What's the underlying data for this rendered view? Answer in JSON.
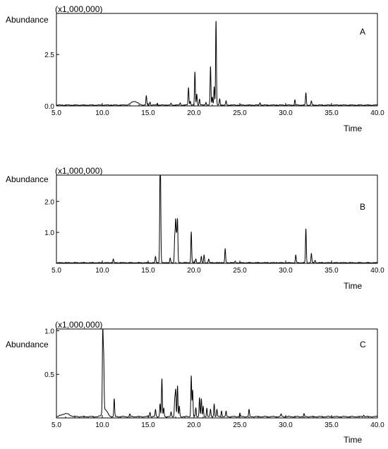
{
  "chart_data": [
    {
      "type": "line",
      "panel_label": "A",
      "scale_label": "(x1,000,000)",
      "ylabel": "Abundance",
      "xlabel": "Time",
      "xlim": [
        5.0,
        40.0
      ],
      "ylim": [
        0,
        4.5
      ],
      "x_ticks": [
        "5.0",
        "10.0",
        "15.0",
        "20.0",
        "25.0",
        "30.0",
        "35.0",
        "40.0"
      ],
      "y_ticks": [
        "0.0",
        "2.5"
      ],
      "y_tick_values": [
        0.0,
        2.5
      ],
      "baseline": 0.04,
      "peaks": [
        {
          "x": 13.5,
          "y": 0.18,
          "w": 0.35
        },
        {
          "x": 14.8,
          "y": 0.45
        },
        {
          "x": 15.2,
          "y": 0.15
        },
        {
          "x": 16.0,
          "y": 0.1
        },
        {
          "x": 17.5,
          "y": 0.08
        },
        {
          "x": 18.5,
          "y": 0.1
        },
        {
          "x": 19.4,
          "y": 0.85
        },
        {
          "x": 19.6,
          "y": 0.2
        },
        {
          "x": 20.1,
          "y": 1.6
        },
        {
          "x": 20.3,
          "y": 0.55
        },
        {
          "x": 20.6,
          "y": 0.3
        },
        {
          "x": 21.3,
          "y": 0.15
        },
        {
          "x": 21.8,
          "y": 1.85
        },
        {
          "x": 22.0,
          "y": 0.4
        },
        {
          "x": 22.2,
          "y": 0.9
        },
        {
          "x": 22.4,
          "y": 4.1
        },
        {
          "x": 22.8,
          "y": 0.3
        },
        {
          "x": 23.5,
          "y": 0.2
        },
        {
          "x": 27.2,
          "y": 0.12
        },
        {
          "x": 31.0,
          "y": 0.25
        },
        {
          "x": 32.2,
          "y": 0.6
        },
        {
          "x": 32.8,
          "y": 0.2
        }
      ]
    },
    {
      "type": "line",
      "panel_label": "B",
      "scale_label": "(x1,000,000)",
      "ylabel": "Abundance",
      "xlabel": "Time",
      "xlim": [
        5.0,
        40.0
      ],
      "ylim": [
        0,
        2.85
      ],
      "x_ticks": [
        "5.0",
        "10.0",
        "15.0",
        "20.0",
        "25.0",
        "30.0",
        "35.0",
        "40.0"
      ],
      "y_ticks": [
        "1.0",
        "2.0"
      ],
      "y_tick_values": [
        1.0,
        2.0
      ],
      "baseline": 0.02,
      "peaks": [
        {
          "x": 11.2,
          "y": 0.12
        },
        {
          "x": 15.8,
          "y": 0.2
        },
        {
          "x": 16.3,
          "y": 2.4
        },
        {
          "x": 16.35,
          "y": 1.8
        },
        {
          "x": 17.4,
          "y": 0.15
        },
        {
          "x": 17.9,
          "y": 0.8
        },
        {
          "x": 18.0,
          "y": 1.3
        },
        {
          "x": 18.1,
          "y": 0.75
        },
        {
          "x": 18.2,
          "y": 1.35
        },
        {
          "x": 19.7,
          "y": 1.0
        },
        {
          "x": 20.2,
          "y": 0.12
        },
        {
          "x": 20.8,
          "y": 0.2
        },
        {
          "x": 21.1,
          "y": 0.25
        },
        {
          "x": 21.6,
          "y": 0.12
        },
        {
          "x": 23.4,
          "y": 0.45
        },
        {
          "x": 24.5,
          "y": 0.05
        },
        {
          "x": 31.1,
          "y": 0.25
        },
        {
          "x": 32.2,
          "y": 1.1
        },
        {
          "x": 32.8,
          "y": 0.3
        },
        {
          "x": 33.2,
          "y": 0.08
        }
      ]
    },
    {
      "type": "line",
      "panel_label": "C",
      "scale_label": "(x1,000,000)",
      "ylabel": "Abundance",
      "xlabel": "Time",
      "xlim": [
        5.0,
        40.0
      ],
      "ylim": [
        0,
        1.02
      ],
      "x_ticks": [
        "5.0",
        "10.0",
        "15.0",
        "20.0",
        "25.0",
        "30.0",
        "35.0",
        "40.0"
      ],
      "y_ticks": [
        "0.5",
        "1.0"
      ],
      "y_tick_values": [
        0.5,
        1.0
      ],
      "baseline": 0.015,
      "peaks": [
        {
          "x": 6.0,
          "y": 0.035,
          "w": 0.4
        },
        {
          "x": 10.05,
          "y": 0.93
        },
        {
          "x": 10.15,
          "y": 0.6
        },
        {
          "x": 10.3,
          "y": 0.08,
          "w": 0.25
        },
        {
          "x": 11.3,
          "y": 0.2
        },
        {
          "x": 13.0,
          "y": 0.03
        },
        {
          "x": 15.2,
          "y": 0.05
        },
        {
          "x": 15.8,
          "y": 0.08
        },
        {
          "x": 16.3,
          "y": 0.15
        },
        {
          "x": 16.5,
          "y": 0.43
        },
        {
          "x": 16.7,
          "y": 0.1
        },
        {
          "x": 17.5,
          "y": 0.05
        },
        {
          "x": 17.9,
          "y": 0.2
        },
        {
          "x": 18.0,
          "y": 0.3
        },
        {
          "x": 18.2,
          "y": 0.35
        },
        {
          "x": 18.4,
          "y": 0.12
        },
        {
          "x": 19.7,
          "y": 0.47
        },
        {
          "x": 19.85,
          "y": 0.3
        },
        {
          "x": 20.2,
          "y": 0.1
        },
        {
          "x": 20.6,
          "y": 0.22
        },
        {
          "x": 20.8,
          "y": 0.2
        },
        {
          "x": 21.0,
          "y": 0.12
        },
        {
          "x": 21.4,
          "y": 0.1
        },
        {
          "x": 21.8,
          "y": 0.08
        },
        {
          "x": 22.2,
          "y": 0.15
        },
        {
          "x": 22.5,
          "y": 0.08
        },
        {
          "x": 23.0,
          "y": 0.07
        },
        {
          "x": 23.5,
          "y": 0.06
        },
        {
          "x": 25.0,
          "y": 0.04
        },
        {
          "x": 26.0,
          "y": 0.08
        },
        {
          "x": 29.5,
          "y": 0.03
        },
        {
          "x": 32.0,
          "y": 0.03
        },
        {
          "x": 38.5,
          "y": 0.02
        }
      ]
    }
  ]
}
